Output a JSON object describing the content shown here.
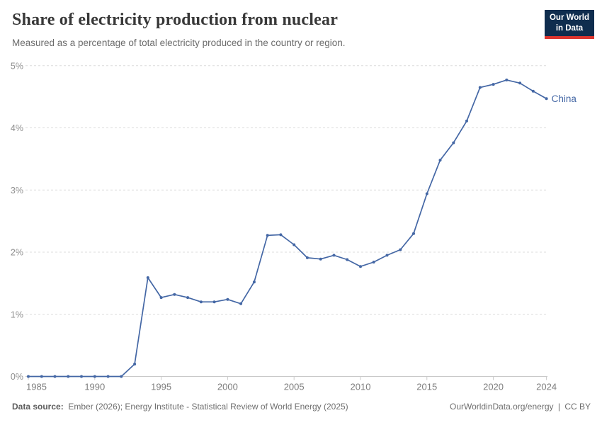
{
  "header": {
    "title": "Share of electricity production from nuclear",
    "subtitle": "Measured as a percentage of total electricity produced in the country or region.",
    "logo": {
      "line1": "Our World",
      "line2": "in Data",
      "bg_color": "#0f2d4e",
      "accent_color": "#dc352e"
    }
  },
  "chart_data": {
    "type": "line",
    "title": "Share of electricity production from nuclear",
    "subtitle": "Measured as a percentage of total electricity produced in the country or region.",
    "xlabel": "",
    "ylabel": "",
    "xlim": [
      1985,
      2024
    ],
    "ylim": [
      0,
      5
    ],
    "grid": "horizontal-dashed",
    "legend_position": "end-of-line-label",
    "x_ticks": [
      1985,
      1990,
      1995,
      2000,
      2005,
      2010,
      2015,
      2020,
      2024
    ],
    "y_tick_values": [
      0,
      1,
      2,
      3,
      4,
      5
    ],
    "y_ticks": [
      "0%",
      "1%",
      "2%",
      "3%",
      "4%",
      "5%"
    ],
    "series": [
      {
        "name": "China",
        "color": "#4467a5",
        "x": [
          1985,
          1986,
          1987,
          1988,
          1989,
          1990,
          1991,
          1992,
          1993,
          1994,
          1995,
          1996,
          1997,
          1998,
          1999,
          2000,
          2001,
          2002,
          2003,
          2004,
          2005,
          2006,
          2007,
          2008,
          2009,
          2010,
          2011,
          2012,
          2013,
          2014,
          2015,
          2016,
          2017,
          2018,
          2019,
          2020,
          2021,
          2022,
          2023,
          2024
        ],
        "values": [
          0,
          0,
          0,
          0,
          0,
          0,
          0,
          0,
          0.2,
          1.59,
          1.27,
          1.32,
          1.27,
          1.2,
          1.2,
          1.24,
          1.17,
          1.52,
          2.27,
          2.28,
          2.12,
          1.91,
          1.89,
          1.95,
          1.88,
          1.77,
          1.84,
          1.95,
          2.04,
          2.3,
          2.94,
          3.48,
          3.76,
          4.11,
          4.65,
          4.7,
          4.77,
          4.72,
          4.59,
          4.47
        ]
      }
    ]
  },
  "footer": {
    "datasource_label": "Data source:",
    "datasource_text": "Ember (2026); Energy Institute - Statistical Review of World Energy (2025)",
    "link": "OurWorldinData.org/energy",
    "separator": "|",
    "license": "CC BY"
  }
}
